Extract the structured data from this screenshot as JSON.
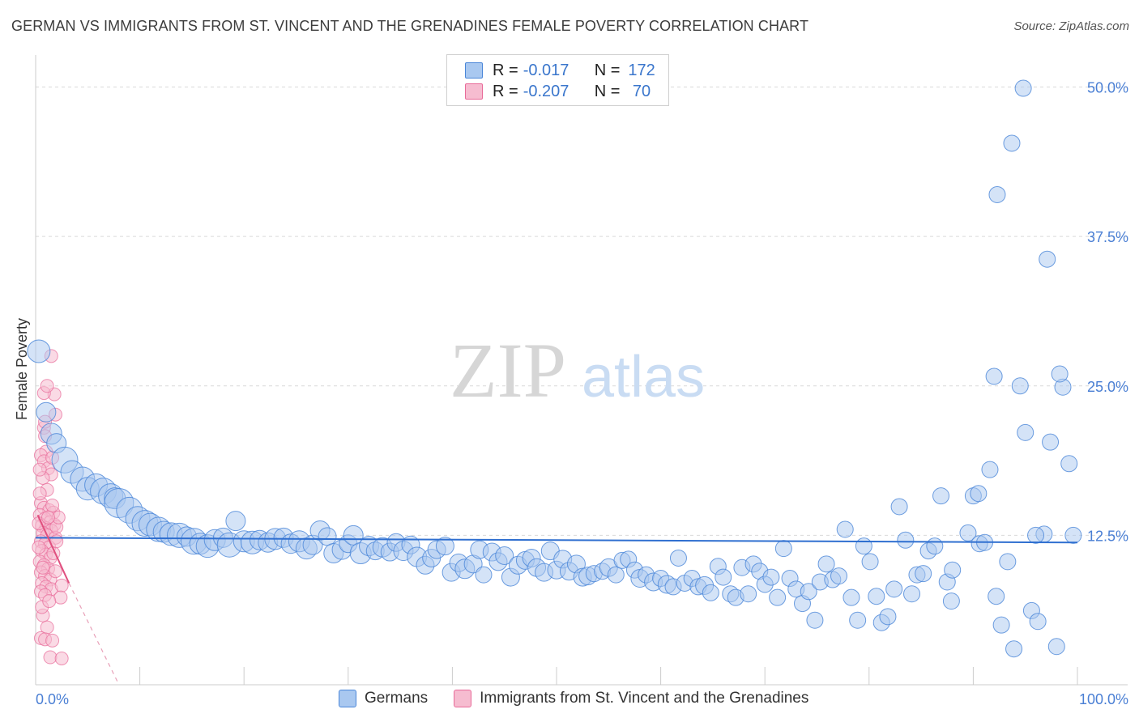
{
  "header": {
    "title": "GERMAN VS IMMIGRANTS FROM ST. VINCENT AND THE GRENADINES FEMALE POVERTY CORRELATION CHART",
    "source": "Source: ZipAtlas.com"
  },
  "legend": {
    "rows": [
      {
        "r_label": "R =",
        "r_value": "-0.017",
        "n_label": "N =",
        "n_value": "172"
      },
      {
        "r_label": "R =",
        "r_value": "-0.207",
        "n_label": "N =",
        "n_value": " 70"
      }
    ]
  },
  "bottom_legend": {
    "items": [
      "Germans",
      "Immigrants from St. Vincent and the Grenadines"
    ]
  },
  "colors": {
    "blue": "#4a86d8",
    "blue_fill": "#a9c8f0",
    "pink": "#e86a98",
    "pink_fill": "#f6bcd0",
    "grid": "#d9d9d9",
    "tick_text": "#4a7fd4"
  },
  "chart_data": {
    "type": "scatter",
    "title": "GERMAN VS IMMIGRANTS FROM ST. VINCENT AND THE GRENADINES FEMALE POVERTY CORRELATION CHART",
    "xlabel": "",
    "ylabel": "Female Poverty",
    "xlim": [
      0,
      100
    ],
    "ylim": [
      0,
      52
    ],
    "x_tick_labels": [
      "0.0%",
      "100.0%"
    ],
    "y_ticks": [
      12.5,
      25.0,
      37.5,
      50.0
    ],
    "y_tick_labels": [
      "12.5%",
      "25.0%",
      "37.5%",
      "50.0%"
    ],
    "grid": true,
    "legend_position": "top-center",
    "watermark": {
      "zip": "ZIP",
      "atlas": "atlas"
    },
    "series": [
      {
        "name": "Germans",
        "color": "#4a86d8",
        "R": -0.017,
        "N": 172,
        "trend": {
          "x": [
            0,
            100
          ],
          "y": [
            12.3,
            11.9
          ]
        },
        "points": [
          [
            0.3,
            27.9,
            14
          ],
          [
            1.0,
            22.8,
            12
          ],
          [
            1.5,
            21.0,
            13
          ],
          [
            2.0,
            20.2,
            12
          ],
          [
            2.8,
            18.8,
            16
          ],
          [
            3.5,
            17.8,
            14
          ],
          [
            4.5,
            17.2,
            15
          ],
          [
            5.0,
            16.4,
            14
          ],
          [
            5.8,
            16.7,
            14
          ],
          [
            6.5,
            16.2,
            16
          ],
          [
            7.2,
            15.8,
            15
          ],
          [
            7.6,
            15.6,
            13
          ],
          [
            8.0,
            15.2,
            18
          ],
          [
            9.0,
            14.6,
            16
          ],
          [
            9.8,
            13.9,
            15
          ],
          [
            10.5,
            13.5,
            16
          ],
          [
            11.0,
            13.4,
            14
          ],
          [
            11.8,
            13.0,
            15
          ],
          [
            12.3,
            12.8,
            13
          ],
          [
            13.0,
            12.6,
            14
          ],
          [
            13.8,
            12.5,
            15
          ],
          [
            14.5,
            12.4,
            12
          ],
          [
            15.2,
            12.0,
            16
          ],
          [
            15.8,
            11.8,
            13
          ],
          [
            16.5,
            11.6,
            14
          ],
          [
            17.2,
            12.1,
            13
          ],
          [
            18.0,
            12.3,
            12
          ],
          [
            18.6,
            11.7,
            15
          ],
          [
            19.2,
            13.7,
            12
          ],
          [
            20.0,
            12.0,
            13
          ],
          [
            20.8,
            11.9,
            14
          ],
          [
            21.5,
            12.1,
            12
          ],
          [
            22.3,
            11.9,
            12
          ],
          [
            23.0,
            12.2,
            13
          ],
          [
            23.8,
            12.3,
            12
          ],
          [
            24.5,
            11.8,
            12
          ],
          [
            25.3,
            12.0,
            13
          ],
          [
            26.0,
            11.4,
            13
          ],
          [
            26.6,
            11.7,
            12
          ],
          [
            27.3,
            12.9,
            12
          ],
          [
            28.0,
            12.4,
            11
          ],
          [
            28.6,
            11.0,
            12
          ],
          [
            29.4,
            11.3,
            12
          ],
          [
            30.0,
            11.8,
            11
          ],
          [
            30.5,
            12.5,
            12
          ],
          [
            31.2,
            11.0,
            13
          ],
          [
            32.0,
            11.6,
            12
          ],
          [
            32.6,
            11.2,
            11
          ],
          [
            33.3,
            11.5,
            12
          ],
          [
            34.0,
            11.1,
            11
          ],
          [
            34.6,
            11.9,
            11
          ],
          [
            35.3,
            11.2,
            12
          ],
          [
            36.0,
            11.7,
            11
          ],
          [
            36.6,
            10.7,
            12
          ],
          [
            37.4,
            10.0,
            11
          ],
          [
            38.0,
            10.6,
            11
          ],
          [
            38.5,
            11.3,
            11
          ],
          [
            39.3,
            11.6,
            11
          ],
          [
            39.9,
            9.4,
            11
          ],
          [
            40.6,
            10.2,
            11
          ],
          [
            41.2,
            9.7,
            12
          ],
          [
            42.0,
            10.1,
            11
          ],
          [
            42.6,
            11.3,
            11
          ],
          [
            43.0,
            9.2,
            10
          ],
          [
            43.8,
            11.1,
            11
          ],
          [
            44.4,
            10.3,
            11
          ],
          [
            45.0,
            10.8,
            11
          ],
          [
            45.6,
            9.0,
            11
          ],
          [
            46.3,
            10.0,
            11
          ],
          [
            47.0,
            10.4,
            11
          ],
          [
            47.6,
            10.6,
            11
          ],
          [
            48.1,
            9.8,
            11
          ],
          [
            48.8,
            9.4,
            11
          ],
          [
            49.4,
            11.2,
            11
          ],
          [
            50.0,
            9.6,
            11
          ],
          [
            50.6,
            10.5,
            11
          ],
          [
            51.2,
            9.5,
            11
          ],
          [
            51.9,
            10.1,
            11
          ],
          [
            52.5,
            9.0,
            11
          ],
          [
            53.0,
            9.1,
            11
          ],
          [
            53.6,
            9.3,
            10
          ],
          [
            54.4,
            9.5,
            10
          ],
          [
            55.0,
            9.8,
            11
          ],
          [
            55.7,
            9.2,
            10
          ],
          [
            56.3,
            10.4,
            10
          ],
          [
            56.9,
            10.5,
            10
          ],
          [
            57.5,
            9.6,
            10
          ],
          [
            58.0,
            8.9,
            11
          ],
          [
            58.6,
            9.2,
            10
          ],
          [
            59.3,
            8.6,
            11
          ],
          [
            60.0,
            8.9,
            10
          ],
          [
            60.6,
            8.4,
            11
          ],
          [
            61.2,
            8.2,
            10
          ],
          [
            61.7,
            10.6,
            10
          ],
          [
            62.3,
            8.5,
            10
          ],
          [
            63.0,
            8.9,
            10
          ],
          [
            63.6,
            8.2,
            10
          ],
          [
            64.2,
            8.3,
            11
          ],
          [
            64.8,
            7.7,
            10
          ],
          [
            65.5,
            9.9,
            10
          ],
          [
            66.0,
            9.0,
            10
          ],
          [
            66.7,
            7.6,
            10
          ],
          [
            67.2,
            7.3,
            10
          ],
          [
            67.8,
            9.8,
            10
          ],
          [
            68.4,
            7.6,
            10
          ],
          [
            68.9,
            10.1,
            10
          ],
          [
            69.5,
            9.5,
            10
          ],
          [
            70.0,
            8.4,
            10
          ],
          [
            70.6,
            9.0,
            10
          ],
          [
            71.2,
            7.3,
            10
          ],
          [
            71.8,
            11.4,
            10
          ],
          [
            72.4,
            8.9,
            10
          ],
          [
            73.0,
            8.0,
            10
          ],
          [
            73.6,
            6.8,
            10
          ],
          [
            74.2,
            7.8,
            10
          ],
          [
            74.8,
            5.4,
            10
          ],
          [
            75.3,
            8.6,
            10
          ],
          [
            75.9,
            10.1,
            10
          ],
          [
            76.5,
            8.8,
            10
          ],
          [
            77.1,
            9.1,
            10
          ],
          [
            77.7,
            13.0,
            10
          ],
          [
            78.3,
            7.3,
            10
          ],
          [
            78.9,
            5.4,
            10
          ],
          [
            79.5,
            11.6,
            10
          ],
          [
            80.1,
            10.3,
            10
          ],
          [
            80.7,
            7.4,
            10
          ],
          [
            81.2,
            5.2,
            10
          ],
          [
            81.8,
            5.7,
            10
          ],
          [
            82.4,
            8.0,
            10
          ],
          [
            82.9,
            14.9,
            10
          ],
          [
            83.5,
            12.1,
            10
          ],
          [
            84.1,
            7.6,
            10
          ],
          [
            84.6,
            9.2,
            10
          ],
          [
            85.2,
            9.3,
            10
          ],
          [
            85.7,
            11.2,
            10
          ],
          [
            86.3,
            11.6,
            10
          ],
          [
            86.9,
            15.8,
            10
          ],
          [
            87.5,
            8.6,
            10
          ],
          [
            88.0,
            9.6,
            10
          ],
          [
            87.9,
            7.0,
            10
          ],
          [
            89.5,
            12.7,
            10
          ],
          [
            90.0,
            15.8,
            10
          ],
          [
            90.6,
            11.8,
            10
          ],
          [
            91.1,
            11.9,
            10
          ],
          [
            91.6,
            18.0,
            10
          ],
          [
            92.2,
            7.4,
            10
          ],
          [
            92.7,
            5.0,
            10
          ],
          [
            93.3,
            10.3,
            10
          ],
          [
            93.9,
            3.0,
            10
          ],
          [
            94.5,
            25.0,
            10
          ],
          [
            95.0,
            21.1,
            10
          ],
          [
            95.6,
            6.2,
            10
          ],
          [
            96.2,
            5.3,
            10
          ],
          [
            96.8,
            12.6,
            10
          ],
          [
            97.4,
            20.3,
            10
          ],
          [
            98.0,
            3.2,
            10
          ],
          [
            98.6,
            24.9,
            10
          ],
          [
            99.2,
            18.5,
            10
          ],
          [
            99.6,
            12.5,
            10
          ],
          [
            92.0,
            25.8,
            10
          ],
          [
            92.3,
            41.0,
            10
          ],
          [
            93.7,
            45.3,
            10
          ],
          [
            94.8,
            49.9,
            10
          ],
          [
            97.1,
            35.6,
            10
          ],
          [
            98.3,
            26.0,
            10
          ],
          [
            90.5,
            16.0,
            10
          ],
          [
            96.0,
            12.5,
            10
          ]
        ]
      },
      {
        "name": "Immigrants from St. Vincent and the Grenadines",
        "color": "#e86a98",
        "R": -0.207,
        "N": 70,
        "trend": {
          "x": [
            0.2,
            3.2
          ],
          "y": [
            14.2,
            8.5
          ]
        },
        "trend_dashed": {
          "x": [
            3.2,
            8.0
          ],
          "y": [
            8.5,
            0.0
          ]
        },
        "points": [
          [
            1.5,
            27.5,
            8
          ],
          [
            1.8,
            24.3,
            8
          ],
          [
            1.9,
            22.6,
            8
          ],
          [
            0.8,
            24.4,
            8
          ],
          [
            0.8,
            21.5,
            8
          ],
          [
            0.9,
            20.8,
            8
          ],
          [
            1.0,
            19.5,
            8
          ],
          [
            0.5,
            19.2,
            8
          ],
          [
            0.8,
            18.7,
            8
          ],
          [
            1.2,
            18.1,
            8
          ],
          [
            1.5,
            17.6,
            8
          ],
          [
            0.7,
            17.3,
            8
          ],
          [
            1.1,
            16.3,
            8
          ],
          [
            0.5,
            15.2,
            8
          ],
          [
            0.8,
            14.8,
            8
          ],
          [
            1.3,
            14.6,
            8
          ],
          [
            1.7,
            14.4,
            8
          ],
          [
            0.4,
            14.2,
            8
          ],
          [
            0.9,
            13.9,
            8
          ],
          [
            1.4,
            13.6,
            8
          ],
          [
            1.8,
            13.4,
            8
          ],
          [
            0.6,
            13.3,
            8
          ],
          [
            1.0,
            13.1,
            8
          ],
          [
            1.5,
            12.9,
            8
          ],
          [
            0.7,
            12.7,
            8
          ],
          [
            1.1,
            12.5,
            8
          ],
          [
            1.9,
            12.3,
            8
          ],
          [
            0.5,
            12.0,
            8
          ],
          [
            0.9,
            11.8,
            8
          ],
          [
            1.3,
            11.5,
            8
          ],
          [
            0.6,
            11.2,
            8
          ],
          [
            1.0,
            10.9,
            8
          ],
          [
            1.4,
            10.6,
            8
          ],
          [
            0.4,
            10.3,
            8
          ],
          [
            0.8,
            10.0,
            8
          ],
          [
            1.2,
            9.7,
            8
          ],
          [
            0.5,
            9.4,
            8
          ],
          [
            0.9,
            9.1,
            8
          ],
          [
            1.4,
            8.8,
            8
          ],
          [
            0.6,
            8.5,
            8
          ],
          [
            1.0,
            8.2,
            8
          ],
          [
            1.5,
            8.0,
            8
          ],
          [
            0.5,
            7.8,
            8
          ],
          [
            0.9,
            7.5,
            8
          ],
          [
            2.5,
            8.3,
            8
          ],
          [
            2.4,
            7.3,
            8
          ],
          [
            0.7,
            5.8,
            8
          ],
          [
            1.1,
            4.8,
            8
          ],
          [
            0.5,
            3.9,
            8
          ],
          [
            0.9,
            3.8,
            8
          ],
          [
            1.6,
            3.7,
            8
          ],
          [
            1.4,
            2.3,
            8
          ],
          [
            2.5,
            2.2,
            8
          ],
          [
            0.3,
            13.5,
            8
          ],
          [
            0.4,
            16.0,
            8
          ],
          [
            1.6,
            15.0,
            8
          ],
          [
            2.0,
            13.2,
            8
          ],
          [
            1.7,
            11.0,
            8
          ],
          [
            2.2,
            14.0,
            8
          ],
          [
            0.3,
            11.5,
            8
          ],
          [
            1.2,
            14.0,
            8
          ],
          [
            0.7,
            9.8,
            8
          ],
          [
            1.9,
            9.5,
            8
          ],
          [
            0.6,
            6.5,
            8
          ],
          [
            1.3,
            7.0,
            8
          ],
          [
            2.0,
            12.0,
            8
          ],
          [
            0.4,
            18.0,
            8
          ],
          [
            1.6,
            19.0,
            8
          ],
          [
            0.9,
            22.0,
            8
          ],
          [
            1.1,
            25.0,
            8
          ]
        ]
      }
    ]
  }
}
